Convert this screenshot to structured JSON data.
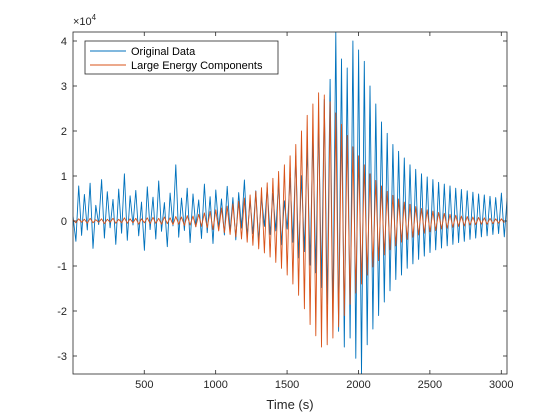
{
  "chart_data": {
    "type": "line",
    "xlabel": "Time (s)",
    "ylabel": "",
    "title": "",
    "xlim": [
      1,
      3040
    ],
    "ylim": [
      -34000,
      42000
    ],
    "xticks": [
      500,
      1000,
      1500,
      2000,
      2500,
      3000
    ],
    "xtick_labels": [
      "500",
      "1000",
      "1500",
      "2000",
      "2500",
      "3000"
    ],
    "yticks": [
      -30000,
      -20000,
      -10000,
      0,
      10000,
      20000,
      30000,
      40000
    ],
    "ytick_labels": [
      "-3",
      "-2",
      "-1",
      "0",
      "1",
      "2",
      "3",
      "4"
    ],
    "y_exponent_base": "×10",
    "y_exponent_power": "4",
    "grid": false,
    "legend_position": "top-left",
    "series": [
      {
        "name": "Original Data",
        "color": "#0072BD",
        "x_start": 1,
        "x_step": 20,
        "values": [
          1000,
          -4500,
          7800,
          -3200,
          5900,
          -2000,
          8400,
          -6100,
          3500,
          -800,
          9200,
          -3800,
          6500,
          -1500,
          4800,
          -5200,
          7100,
          -2700,
          10500,
          -4300,
          5600,
          -900,
          6800,
          -3300,
          4200,
          -6500,
          7600,
          -1900,
          5300,
          -4000,
          8900,
          -2300,
          4100,
          -5700,
          6200,
          -1100,
          12500,
          -3600,
          5100,
          -2100,
          7300,
          -4800,
          6000,
          -1300,
          4700,
          -3900,
          8200,
          -2600,
          5400,
          -5000,
          6900,
          -1700,
          4900,
          -3100,
          7700,
          -2400,
          5200,
          -4200,
          6300,
          -1600,
          9100,
          -3500,
          4600,
          -2800,
          6700,
          -4600,
          5500,
          -1200,
          7400,
          -3000,
          6100,
          -2200,
          8600,
          -5300,
          4500,
          -1800,
          9600,
          -4700,
          14500,
          -8200,
          10100,
          -6800,
          16500,
          -9800,
          19000,
          -11500,
          22500,
          -14800,
          27000,
          -18500,
          31500,
          -22000,
          42000,
          -24500,
          36000,
          -28000,
          34000,
          -26000,
          40000,
          -30500,
          38000,
          -34000,
          35500,
          -27500,
          30000,
          -24000,
          26000,
          -21000,
          22000,
          -18000,
          19500,
          -15500,
          17000,
          -13000,
          15500,
          -12000,
          14000,
          -10500,
          12500,
          -9500,
          11500,
          -8500,
          10500,
          -7800,
          9800,
          -7000,
          9200,
          -6400,
          8600,
          -6000,
          8200,
          -5500,
          7800,
          -5200,
          7300,
          -4800,
          7000,
          -4500,
          6700,
          -4100,
          6400,
          -3800,
          6000,
          -3500,
          5800,
          -3300,
          5500,
          -3000,
          5200,
          -2800,
          6200,
          -3500,
          5000,
          -2600,
          5700,
          -3100
        ]
      },
      {
        "name": "Large Energy Components",
        "color": "#D95319",
        "x_start": 1,
        "x_step": 20,
        "values": [
          300,
          -400,
          500,
          -300,
          400,
          -500,
          600,
          -400,
          300,
          -300,
          500,
          -600,
          400,
          -300,
          600,
          -500,
          400,
          -400,
          700,
          -500,
          500,
          -400,
          600,
          -700,
          500,
          -400,
          700,
          -600,
          800,
          -500,
          600,
          -700,
          900,
          -600,
          700,
          -800,
          1000,
          -700,
          900,
          -1000,
          1200,
          -900,
          1100,
          -1300,
          1500,
          -1200,
          1800,
          -1500,
          2100,
          -1900,
          2500,
          -2200,
          2900,
          -2600,
          3300,
          -3000,
          3800,
          -3500,
          4400,
          -4000,
          5100,
          -4700,
          5800,
          -5400,
          6600,
          -6200,
          7400,
          -7100,
          8500,
          -8000,
          9500,
          -9200,
          11000,
          -10500,
          12500,
          -12000,
          14500,
          -14000,
          17000,
          -16500,
          20000,
          -19500,
          23500,
          -23000,
          26000,
          -25500,
          28500,
          -28000,
          28000,
          -27500,
          26500,
          -26000,
          24000,
          -23500,
          21500,
          -21000,
          19000,
          -18500,
          16500,
          -16000,
          14500,
          -14000,
          12500,
          -12000,
          10500,
          -10200,
          9000,
          -8800,
          7800,
          -7500,
          6600,
          -6400,
          5700,
          -5500,
          4900,
          -4700,
          4200,
          -4100,
          3700,
          -3600,
          3200,
          -3100,
          2800,
          -2700,
          2500,
          -2400,
          2200,
          -2100,
          1900,
          -1800,
          1700,
          -1600,
          1500,
          -1400,
          1300,
          -1200,
          1100,
          -1100,
          1000,
          -900,
          900,
          -800,
          800,
          -700,
          700,
          -700,
          600,
          -600,
          500,
          -500,
          500,
          -400
        ]
      }
    ]
  }
}
